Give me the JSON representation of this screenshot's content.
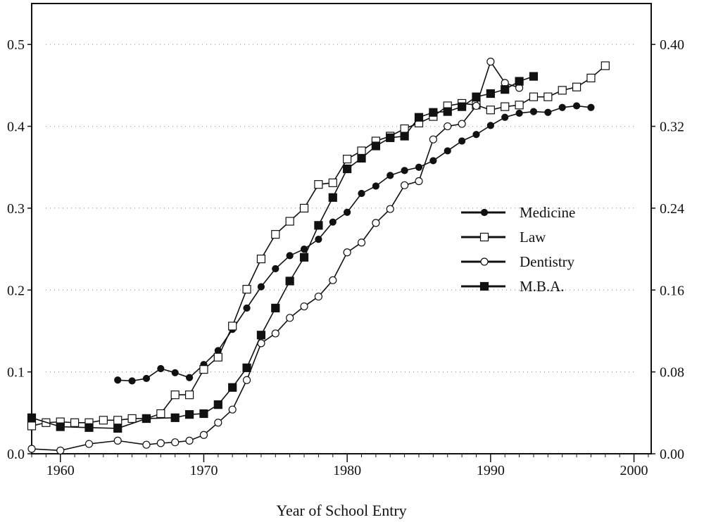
{
  "chart_data": {
    "type": "line",
    "title": "",
    "xlabel": "Year of School Entry",
    "ylabel": "",
    "xlim": [
      1958,
      2001.2
    ],
    "ylim": [
      0,
      0.55
    ],
    "x_ticks": [
      1960,
      1970,
      1980,
      1990,
      2000
    ],
    "y_ticks_left": [
      "0.0",
      "0.1",
      "0.2",
      "0.3",
      "0.4",
      "0.5"
    ],
    "y_ticks_left_values": [
      0,
      0.1,
      0.2,
      0.3,
      0.4,
      0.5
    ],
    "y_ticks_right": [
      "0.00",
      "0.08",
      "0.16",
      "0.24",
      "0.32",
      "0.40"
    ],
    "y_ticks_right_values": [
      0,
      0.08,
      0.16,
      0.24,
      0.32,
      0.4
    ],
    "right_axis_scale": 0.8,
    "grid": "dotted horizontal",
    "legend_position": "center-right",
    "colors": {
      "line": "#111111",
      "grid": "#999999"
    },
    "series": [
      {
        "name": "Medicine",
        "marker": "filled-circle",
        "x": [
          1964,
          1965,
          1966,
          1967,
          1968,
          1969,
          1970,
          1971,
          1972,
          1973,
          1974,
          1975,
          1976,
          1977,
          1978,
          1979,
          1980,
          1981,
          1982,
          1983,
          1984,
          1985,
          1986,
          1987,
          1988,
          1989,
          1990,
          1991,
          1992,
          1993,
          1994,
          1995,
          1996,
          1997
        ],
        "y": [
          0.09,
          0.089,
          0.092,
          0.104,
          0.099,
          0.093,
          0.109,
          0.126,
          0.152,
          0.178,
          0.204,
          0.226,
          0.242,
          0.25,
          0.262,
          0.283,
          0.295,
          0.318,
          0.327,
          0.34,
          0.346,
          0.35,
          0.358,
          0.37,
          0.382,
          0.39,
          0.401,
          0.411,
          0.416,
          0.418,
          0.417,
          0.423,
          0.425,
          0.423
        ]
      },
      {
        "name": "Law",
        "marker": "open-square",
        "x": [
          1958,
          1959,
          1960,
          1961,
          1962,
          1963,
          1964,
          1965,
          1966,
          1967,
          1968,
          1969,
          1970,
          1971,
          1972,
          1973,
          1974,
          1975,
          1976,
          1977,
          1978,
          1979,
          1980,
          1981,
          1982,
          1983,
          1984,
          1985,
          1986,
          1987,
          1988,
          1989,
          1990,
          1991,
          1992,
          1993,
          1994,
          1995,
          1996,
          1997,
          1998
        ],
        "y": [
          0.034,
          0.038,
          0.039,
          0.038,
          0.038,
          0.041,
          0.041,
          0.043,
          0.043,
          0.049,
          0.072,
          0.072,
          0.103,
          0.118,
          0.156,
          0.201,
          0.238,
          0.268,
          0.284,
          0.3,
          0.329,
          0.331,
          0.36,
          0.37,
          0.382,
          0.388,
          0.397,
          0.404,
          0.412,
          0.425,
          0.428,
          0.426,
          0.42,
          0.424,
          0.426,
          0.436,
          0.436,
          0.444,
          0.448,
          0.459,
          0.474
        ]
      },
      {
        "name": "Dentistry",
        "marker": "open-circle",
        "x": [
          1958,
          1960,
          1962,
          1964,
          1966,
          1967,
          1968,
          1969,
          1970,
          1971,
          1972,
          1973,
          1974,
          1975,
          1976,
          1977,
          1978,
          1979,
          1980,
          1981,
          1982,
          1983,
          1984,
          1985,
          1986,
          1987,
          1988,
          1989,
          1990,
          1991,
          1992
        ],
        "y": [
          0.006,
          0.004,
          0.012,
          0.016,
          0.011,
          0.013,
          0.014,
          0.016,
          0.023,
          0.038,
          0.054,
          0.09,
          0.135,
          0.147,
          0.166,
          0.18,
          0.192,
          0.212,
          0.246,
          0.258,
          0.282,
          0.299,
          0.328,
          0.333,
          0.384,
          0.4,
          0.403,
          0.425,
          0.479,
          0.453,
          0.447
        ]
      },
      {
        "name": "M.B.A.",
        "marker": "filled-square",
        "x": [
          1958,
          1960,
          1962,
          1964,
          1966,
          1968,
          1969,
          1970,
          1971,
          1972,
          1973,
          1974,
          1975,
          1976,
          1977,
          1978,
          1979,
          1980,
          1981,
          1982,
          1983,
          1984,
          1985,
          1986,
          1987,
          1988,
          1989,
          1990,
          1991,
          1992,
          1993
        ],
        "y": [
          0.044,
          0.033,
          0.032,
          0.031,
          0.043,
          0.044,
          0.048,
          0.049,
          0.06,
          0.081,
          0.105,
          0.145,
          0.178,
          0.211,
          0.24,
          0.279,
          0.313,
          0.348,
          0.361,
          0.376,
          0.386,
          0.388,
          0.411,
          0.417,
          0.418,
          0.424,
          0.436,
          0.44,
          0.445,
          0.455,
          0.461
        ]
      }
    ]
  }
}
